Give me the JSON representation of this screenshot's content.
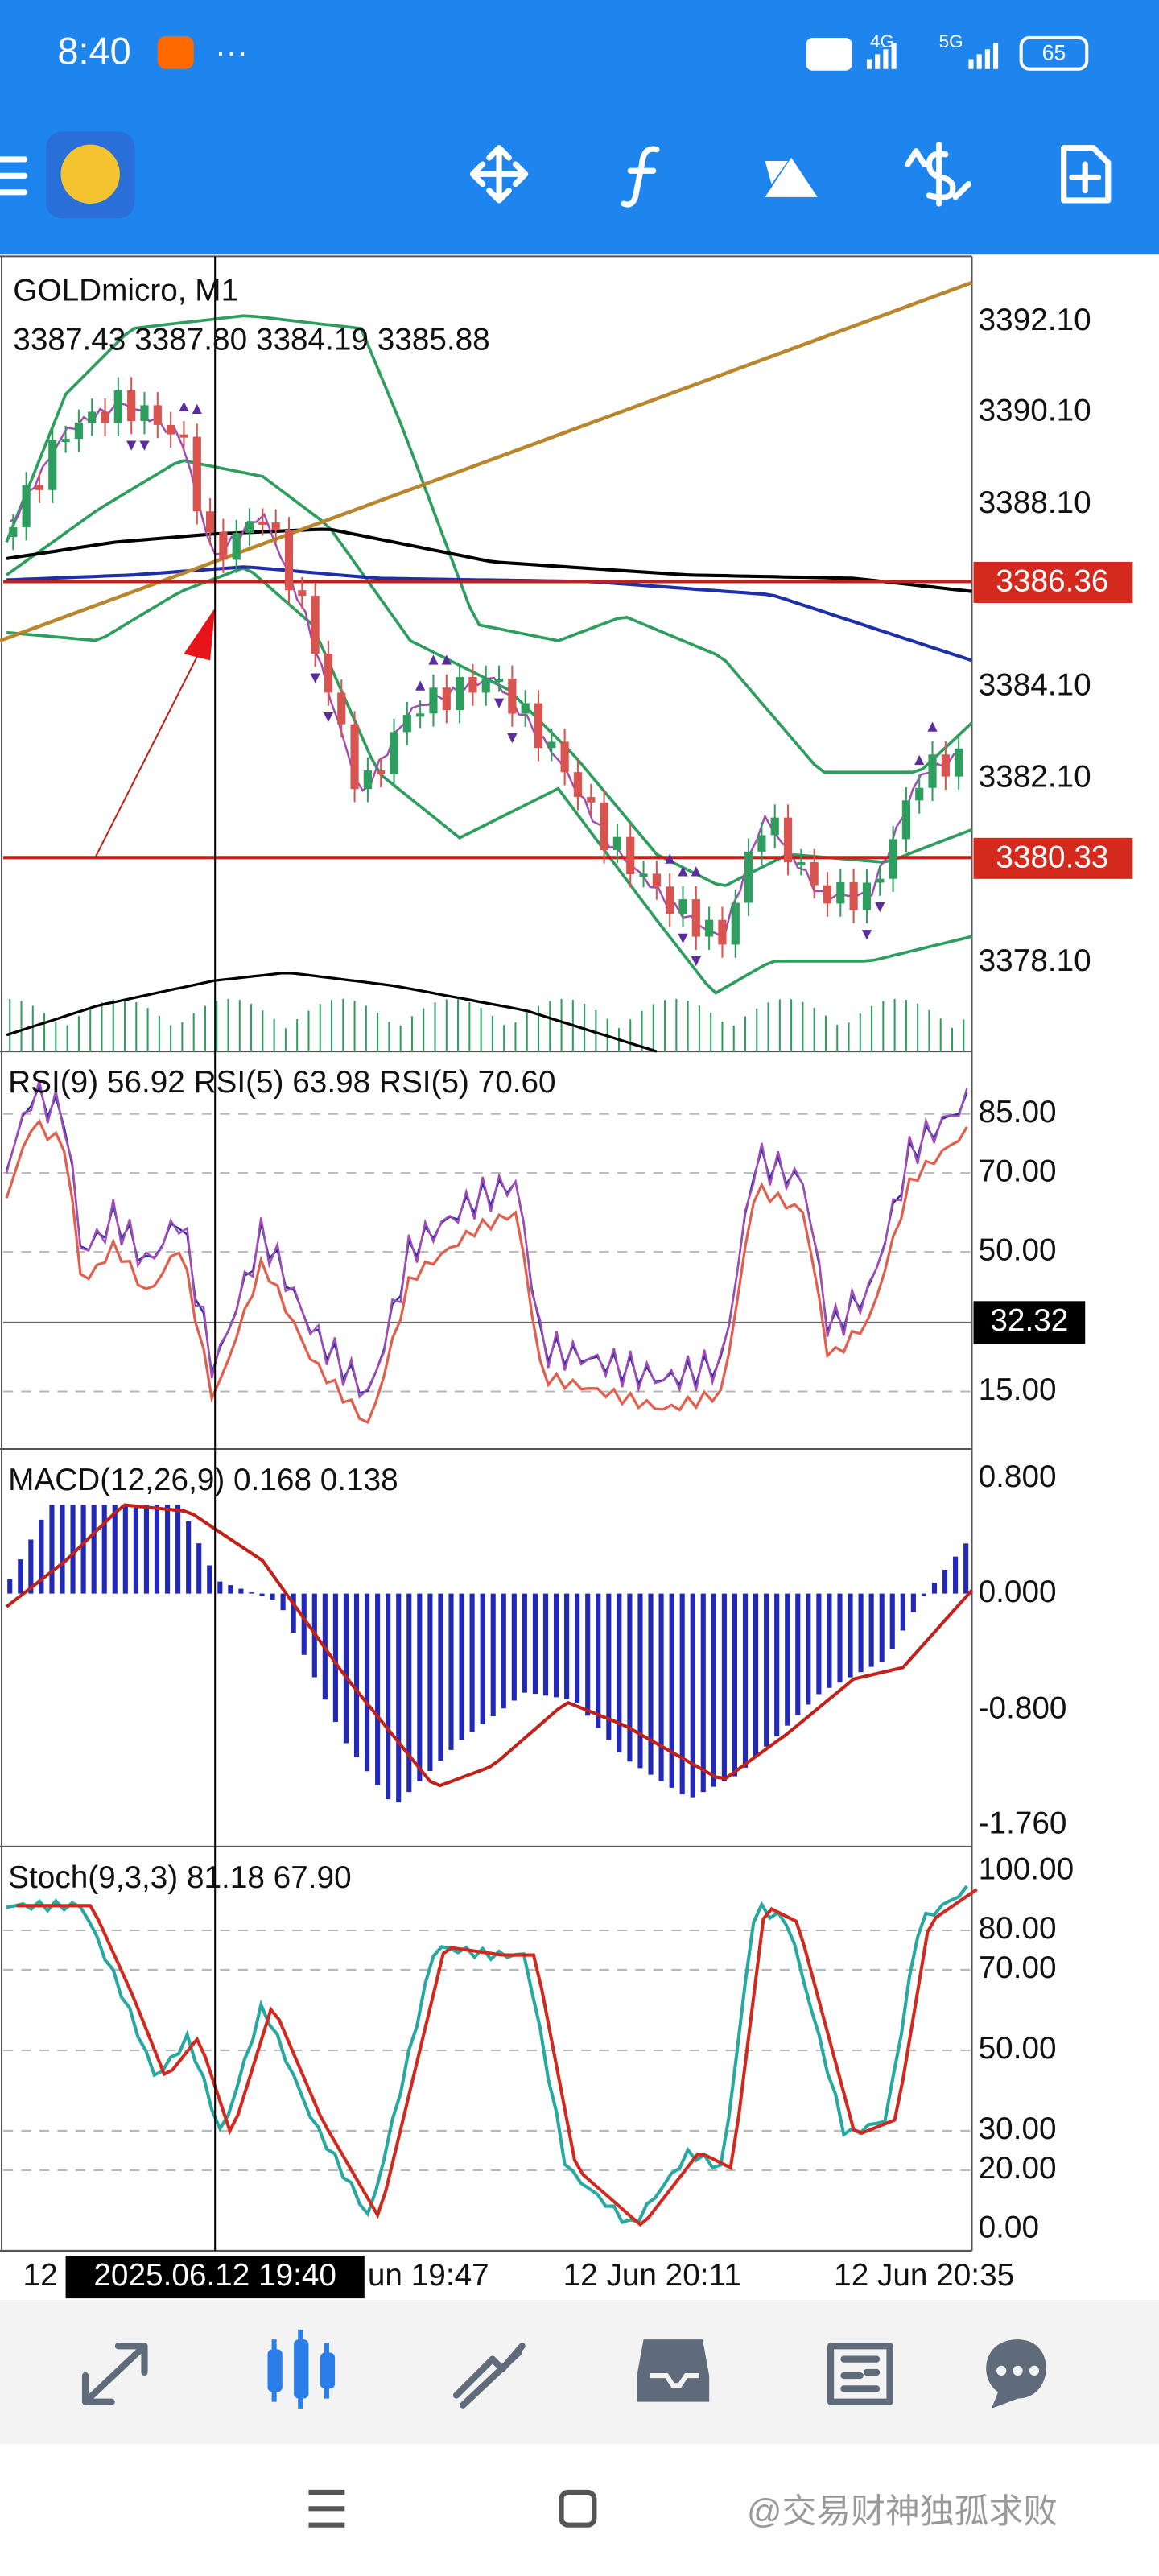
{
  "status_bar": {
    "time": "8:40",
    "network_4g": "4G",
    "network_5g": "5G",
    "battery": "65"
  },
  "chart": {
    "symbol": "GOLDmicro, M1",
    "ohlc": "3387.43 3387.80 3384.19 3385.88",
    "price_labels": [
      "3392.10",
      "3390.10",
      "3388.10",
      "3384.10",
      "3382.10",
      "3378.10"
    ],
    "price_markers": [
      "3386.36",
      "3380.33"
    ]
  },
  "rsi": {
    "label": "RSI(9) 56.92 RSI(5) 63.98 RSI(5) 70.60",
    "levels": [
      "85.00",
      "70.00",
      "50.00",
      "15.00"
    ],
    "marker": "32.32"
  },
  "macd": {
    "label": "MACD(12,26,9) 0.168 0.138",
    "levels": [
      "0.800",
      "0.000",
      "-0.800",
      "-1.760"
    ]
  },
  "stoch": {
    "label": "Stoch(9,3,3) 81.18 67.90",
    "levels": [
      "100.00",
      "80.00",
      "70.00",
      "50.00",
      "30.00",
      "20.00",
      "0.00"
    ]
  },
  "time_axis": {
    "labels": [
      "12",
      "un 19:47",
      "12 Jun 20:11",
      "12 Jun 20:35"
    ],
    "cursor": "2025.06.12 19:40"
  },
  "watermark": "@交易财神独孤求败"
}
